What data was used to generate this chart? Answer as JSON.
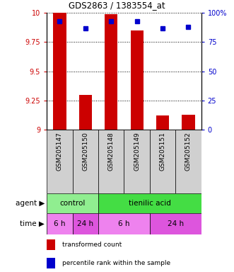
{
  "title": "GDS2863 / 1383554_at",
  "samples": [
    "GSM205147",
    "GSM205150",
    "GSM205148",
    "GSM205149",
    "GSM205151",
    "GSM205152"
  ],
  "bar_values": [
    10.0,
    9.3,
    9.99,
    9.85,
    9.12,
    9.13
  ],
  "percentile_values": [
    93,
    87,
    93,
    93,
    87,
    88
  ],
  "bar_color": "#cc0000",
  "percentile_color": "#0000cc",
  "ylim_left": [
    9,
    10
  ],
  "ylim_right": [
    0,
    100
  ],
  "yticks_left": [
    9,
    9.25,
    9.5,
    9.75,
    10
  ],
  "ytick_labels_left": [
    "9",
    "9.25",
    "9.5",
    "9.75",
    "10"
  ],
  "yticks_right": [
    0,
    25,
    50,
    75,
    100
  ],
  "ytick_labels_right": [
    "0",
    "25",
    "50",
    "75",
    "100%"
  ],
  "agent_data": [
    {
      "text": "control",
      "start": 0,
      "end": 1,
      "color": "#90ee90"
    },
    {
      "text": "tienilic acid",
      "start": 2,
      "end": 5,
      "color": "#44dd44"
    }
  ],
  "time_data": [
    {
      "text": "6 h",
      "start": 0,
      "end": 0,
      "color": "#ee82ee"
    },
    {
      "text": "24 h",
      "start": 1,
      "end": 1,
      "color": "#dd55dd"
    },
    {
      "text": "6 h",
      "start": 2,
      "end": 3,
      "color": "#ee82ee"
    },
    {
      "text": "24 h",
      "start": 4,
      "end": 5,
      "color": "#dd55dd"
    }
  ],
  "legend_items": [
    {
      "label": "transformed count",
      "color": "#cc0000"
    },
    {
      "label": "percentile rank within the sample",
      "color": "#0000cc"
    }
  ],
  "bar_bottom": 9,
  "left_label_color": "#000000",
  "grid_color": "#000000",
  "sample_box_color": "#d0d0d0"
}
